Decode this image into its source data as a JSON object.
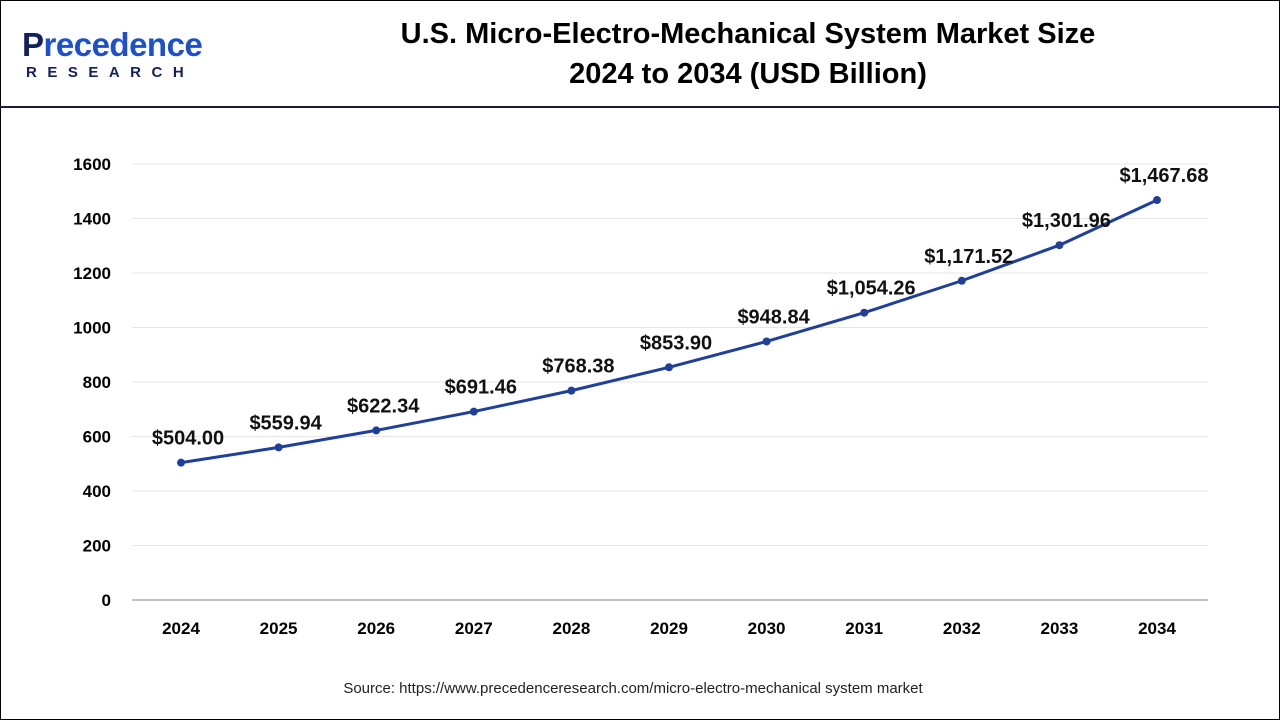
{
  "header": {
    "logo_text_top": "Precedence",
    "logo_text_bottom": "RESEARCH",
    "title_line1": "U.S. Micro-Electro-Mechanical System Market Size",
    "title_line2": "2024 to 2034 (USD Billion)"
  },
  "source": "Source: https://www.precedenceresearch.com/micro-electro-mechanical system market",
  "colors": {
    "line": "#1f3f9a",
    "grid": "#e6e6e6",
    "axis": "#bfbfbf"
  },
  "chart_data": {
    "type": "line",
    "title": "U.S. Micro-Electro-Mechanical System Market Size 2024 to 2034 (USD Billion)",
    "categories": [
      "2024",
      "2025",
      "2026",
      "2027",
      "2028",
      "2029",
      "2030",
      "2031",
      "2032",
      "2033",
      "2034"
    ],
    "values": [
      504.0,
      559.94,
      622.34,
      691.46,
      768.38,
      853.9,
      948.84,
      1054.26,
      1171.52,
      1301.96,
      1467.68
    ],
    "data_labels": [
      "$504.00",
      "$559.94",
      "$622.34",
      "$691.46",
      "$768.38",
      "$853.90",
      "$948.84",
      "$1,054.26",
      "$1,171.52",
      "$1,301.96",
      "$1,467.68"
    ],
    "yticks": [
      "0",
      "200",
      "400",
      "600",
      "800",
      "1000",
      "1200",
      "1400",
      "1600"
    ],
    "ylim": [
      0,
      1600
    ],
    "grid": true,
    "legend": "none"
  }
}
